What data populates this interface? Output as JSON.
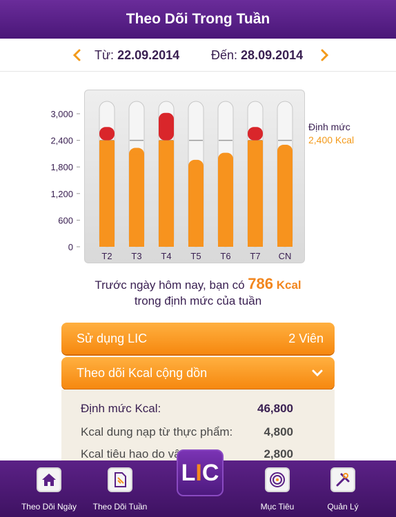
{
  "header": {
    "title": "Theo Dõi Trong Tuần"
  },
  "daterange": {
    "from_label": "Từ:",
    "from_value": "22.09.2014",
    "to_label": "Đến:",
    "to_value": "28.09.2014"
  },
  "quota": {
    "label": "Định mức",
    "value": "2,400 Kcal"
  },
  "chart_data": {
    "type": "bar",
    "categories": [
      "T2",
      "T3",
      "T4",
      "T5",
      "T6",
      "T7",
      "CN"
    ],
    "values": [
      2700,
      2230,
      3020,
      1960,
      2120,
      2700,
      2300
    ],
    "threshold": 2400,
    "yticks": [
      "3,000",
      "2,400",
      "1,800",
      "1,200",
      "600",
      "0"
    ],
    "ytick_values": [
      3000,
      2400,
      1800,
      1200,
      600,
      0
    ],
    "ylim": [
      0,
      3000
    ],
    "colors": {
      "under": "#f7931e",
      "over": "#d9262b",
      "track": "#f5f5f5"
    }
  },
  "summary": {
    "line1_prefix": "Trước ngày hôm nay, bạn có",
    "amount": "786",
    "unit": "Kcal",
    "line2": "trong định mức của tuần"
  },
  "panels": {
    "lic_label": "Sử dụng LIC",
    "lic_value": "2 Viên",
    "accum_label": "Theo dõi Kcal cộng dồn"
  },
  "details": [
    {
      "label": "Định mức Kcal:",
      "value": "46,800"
    },
    {
      "label": "Kcal dung nạp từ thực phẩm:",
      "value": "4,800"
    },
    {
      "label": "Kcal tiêu hao do vận động:",
      "value": "2,800"
    }
  ],
  "tabs": {
    "t1": "Theo Dõi Ngày",
    "t2": "Theo Dõi Tuần",
    "t3": "Mục Tiêu",
    "t4": "Quản Lý",
    "logo_l": "L",
    "logo_i": "I",
    "logo_c": "C"
  },
  "icons": {
    "prev": "chevron-left-icon",
    "next": "chevron-right-icon",
    "expand": "chevron-down-icon",
    "home": "home-icon",
    "week": "document-icon",
    "target": "target-icon",
    "manage": "tools-icon"
  },
  "accent": "#f7931e",
  "brand": "#5b2186"
}
